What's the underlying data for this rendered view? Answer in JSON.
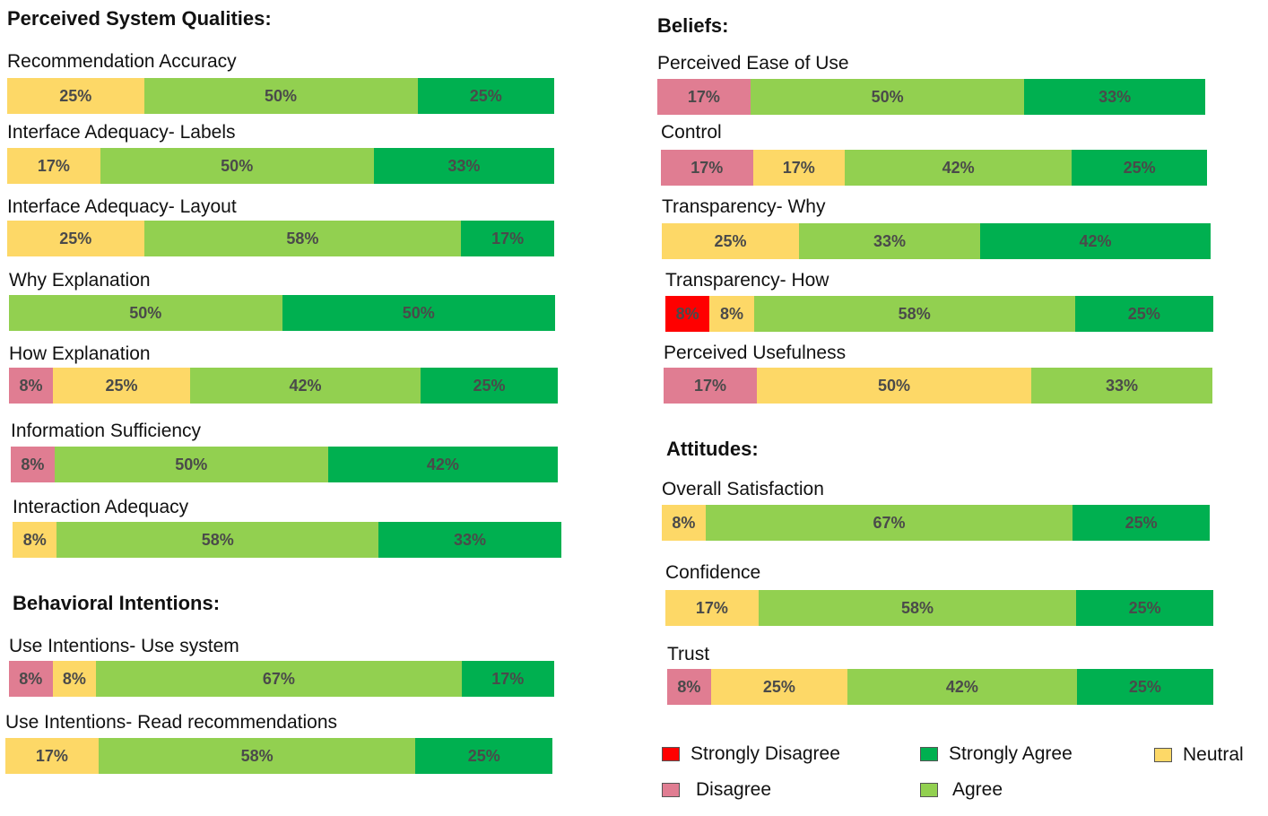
{
  "colors": {
    "strongly_disagree": "#ff0000",
    "disagree": "#e07d92",
    "neutral": "#fdd867",
    "agree": "#92d050",
    "strongly_agree": "#00b050"
  },
  "sections": {
    "perceived": "Perceived System Qualities:",
    "behavioral": "Behavioral Intentions:",
    "beliefs": "Beliefs:",
    "attitudes": "Attitudes:"
  },
  "legend": {
    "strongly_disagree": "Strongly Disagree",
    "disagree": "Disagree",
    "strongly_agree": "Strongly Agree",
    "agree": "Agree",
    "neutral": "Neutral"
  },
  "chart_data": [
    {
      "type": "bar",
      "stacked": true,
      "title": "Recommendation Accuracy",
      "series": [
        {
          "name": "Neutral",
          "key": "neutral",
          "values": [
            25
          ],
          "label": "25%"
        },
        {
          "name": "Agree",
          "key": "agree",
          "values": [
            50
          ],
          "label": "50%"
        },
        {
          "name": "Strongly Agree",
          "key": "strongly_agree",
          "values": [
            25
          ],
          "label": "25%"
        }
      ]
    },
    {
      "type": "bar",
      "stacked": true,
      "title": "Interface Adequacy- Labels",
      "series": [
        {
          "name": "Neutral",
          "key": "neutral",
          "values": [
            17
          ],
          "label": "17%"
        },
        {
          "name": "Agree",
          "key": "agree",
          "values": [
            50
          ],
          "label": "50%"
        },
        {
          "name": "Strongly Agree",
          "key": "strongly_agree",
          "values": [
            33
          ],
          "label": "33%"
        }
      ]
    },
    {
      "type": "bar",
      "stacked": true,
      "title": "Interface Adequacy- Layout",
      "series": [
        {
          "name": "Neutral",
          "key": "neutral",
          "values": [
            25
          ],
          "label": "25%"
        },
        {
          "name": "Agree",
          "key": "agree",
          "values": [
            58
          ],
          "label": "58%"
        },
        {
          "name": "Strongly Agree",
          "key": "strongly_agree",
          "values": [
            17
          ],
          "label": "17%"
        }
      ]
    },
    {
      "type": "bar",
      "stacked": true,
      "title": "Why Explanation",
      "series": [
        {
          "name": "Agree",
          "key": "agree",
          "values": [
            50
          ],
          "label": "50%"
        },
        {
          "name": "Strongly Agree",
          "key": "strongly_agree",
          "values": [
            50
          ],
          "label": "50%"
        }
      ]
    },
    {
      "type": "bar",
      "stacked": true,
      "title": "How Explanation",
      "series": [
        {
          "name": "Disagree",
          "key": "disagree",
          "values": [
            8
          ],
          "label": "8%"
        },
        {
          "name": "Neutral",
          "key": "neutral",
          "values": [
            25
          ],
          "label": "25%"
        },
        {
          "name": "Agree",
          "key": "agree",
          "values": [
            42
          ],
          "label": "42%"
        },
        {
          "name": "Strongly Agree",
          "key": "strongly_agree",
          "values": [
            25
          ],
          "label": "25%"
        }
      ]
    },
    {
      "type": "bar",
      "stacked": true,
      "title": "Information Sufficiency",
      "series": [
        {
          "name": "Disagree",
          "key": "disagree",
          "values": [
            8
          ],
          "label": "8%"
        },
        {
          "name": "Agree",
          "key": "agree",
          "values": [
            50
          ],
          "label": "50%"
        },
        {
          "name": "Strongly Agree",
          "key": "strongly_agree",
          "values": [
            42
          ],
          "label": "42%"
        }
      ]
    },
    {
      "type": "bar",
      "stacked": true,
      "title": "Interaction Adequacy",
      "series": [
        {
          "name": "Neutral",
          "key": "neutral",
          "values": [
            8
          ],
          "label": "8%"
        },
        {
          "name": "Agree",
          "key": "agree",
          "values": [
            58
          ],
          "label": "58%"
        },
        {
          "name": "Strongly Agree",
          "key": "strongly_agree",
          "values": [
            33
          ],
          "label": "33%"
        }
      ]
    },
    {
      "type": "bar",
      "stacked": true,
      "title": "Use Intentions- Use system",
      "series": [
        {
          "name": "Disagree",
          "key": "disagree",
          "values": [
            8
          ],
          "label": "8%"
        },
        {
          "name": "Neutral",
          "key": "neutral",
          "values": [
            8
          ],
          "label": "8%"
        },
        {
          "name": "Agree",
          "key": "agree",
          "values": [
            67
          ],
          "label": "67%"
        },
        {
          "name": "Strongly Agree",
          "key": "strongly_agree",
          "values": [
            17
          ],
          "label": "17%"
        }
      ]
    },
    {
      "type": "bar",
      "stacked": true,
      "title": "Use Intentions- Read recommendations",
      "series": [
        {
          "name": "Neutral",
          "key": "neutral",
          "values": [
            17
          ],
          "label": "17%"
        },
        {
          "name": "Agree",
          "key": "agree",
          "values": [
            58
          ],
          "label": "58%"
        },
        {
          "name": "Strongly Agree",
          "key": "strongly_agree",
          "values": [
            25
          ],
          "label": "25%"
        }
      ]
    },
    {
      "type": "bar",
      "stacked": true,
      "title": "Perceived Ease of Use",
      "series": [
        {
          "name": "Disagree",
          "key": "disagree",
          "values": [
            17
          ],
          "label": "17%"
        },
        {
          "name": "Agree",
          "key": "agree",
          "values": [
            50
          ],
          "label": "50%"
        },
        {
          "name": "Strongly Agree",
          "key": "strongly_agree",
          "values": [
            33
          ],
          "label": "33%"
        }
      ]
    },
    {
      "type": "bar",
      "stacked": true,
      "title": "Control",
      "series": [
        {
          "name": "Disagree",
          "key": "disagree",
          "values": [
            17
          ],
          "label": "17%"
        },
        {
          "name": "Neutral",
          "key": "neutral",
          "values": [
            17
          ],
          "label": "17%"
        },
        {
          "name": "Agree",
          "key": "agree",
          "values": [
            42
          ],
          "label": "42%"
        },
        {
          "name": "Strongly Agree",
          "key": "strongly_agree",
          "values": [
            25
          ],
          "label": "25%"
        }
      ]
    },
    {
      "type": "bar",
      "stacked": true,
      "title": "Transparency- Why",
      "series": [
        {
          "name": "Neutral",
          "key": "neutral",
          "values": [
            25
          ],
          "label": "25%"
        },
        {
          "name": "Agree",
          "key": "agree",
          "values": [
            33
          ],
          "label": "33%"
        },
        {
          "name": "Strongly Agree",
          "key": "strongly_agree",
          "values": [
            42
          ],
          "label": "42%"
        }
      ]
    },
    {
      "type": "bar",
      "stacked": true,
      "title": "Transparency- How",
      "series": [
        {
          "name": "Strongly Disagree",
          "key": "strongly_disagree",
          "values": [
            8
          ],
          "label": "8%"
        },
        {
          "name": "Neutral",
          "key": "neutral",
          "values": [
            8
          ],
          "label": "8%"
        },
        {
          "name": "Agree",
          "key": "agree",
          "values": [
            58
          ],
          "label": "58%"
        },
        {
          "name": "Strongly Agree",
          "key": "strongly_agree",
          "values": [
            25
          ],
          "label": "25%"
        }
      ]
    },
    {
      "type": "bar",
      "stacked": true,
      "title": "Perceived Usefulness",
      "series": [
        {
          "name": "Disagree",
          "key": "disagree",
          "values": [
            17
          ],
          "label": "17%"
        },
        {
          "name": "Neutral",
          "key": "neutral",
          "values": [
            50
          ],
          "label": "50%"
        },
        {
          "name": "Agree",
          "key": "agree",
          "values": [
            33
          ],
          "label": "33%"
        }
      ]
    },
    {
      "type": "bar",
      "stacked": true,
      "title": "Overall Satisfaction",
      "series": [
        {
          "name": "Neutral",
          "key": "neutral",
          "values": [
            8
          ],
          "label": "8%"
        },
        {
          "name": "Agree",
          "key": "agree",
          "values": [
            67
          ],
          "label": "67%"
        },
        {
          "name": "Strongly Agree",
          "key": "strongly_agree",
          "values": [
            25
          ],
          "label": "25%"
        }
      ]
    },
    {
      "type": "bar",
      "stacked": true,
      "title": "Confidence",
      "series": [
        {
          "name": "Neutral",
          "key": "neutral",
          "values": [
            17
          ],
          "label": "17%"
        },
        {
          "name": "Agree",
          "key": "agree",
          "values": [
            58
          ],
          "label": "58%"
        },
        {
          "name": "Strongly Agree",
          "key": "strongly_agree",
          "values": [
            25
          ],
          "label": "25%"
        }
      ]
    },
    {
      "type": "bar",
      "stacked": true,
      "title": "Trust",
      "series": [
        {
          "name": "Disagree",
          "key": "disagree",
          "values": [
            8
          ],
          "label": "8%"
        },
        {
          "name": "Neutral",
          "key": "neutral",
          "values": [
            25
          ],
          "label": "25%"
        },
        {
          "name": "Agree",
          "key": "agree",
          "values": [
            42
          ],
          "label": "42%"
        },
        {
          "name": "Strongly Agree",
          "key": "strongly_agree",
          "values": [
            25
          ],
          "label": "25%"
        }
      ]
    }
  ]
}
